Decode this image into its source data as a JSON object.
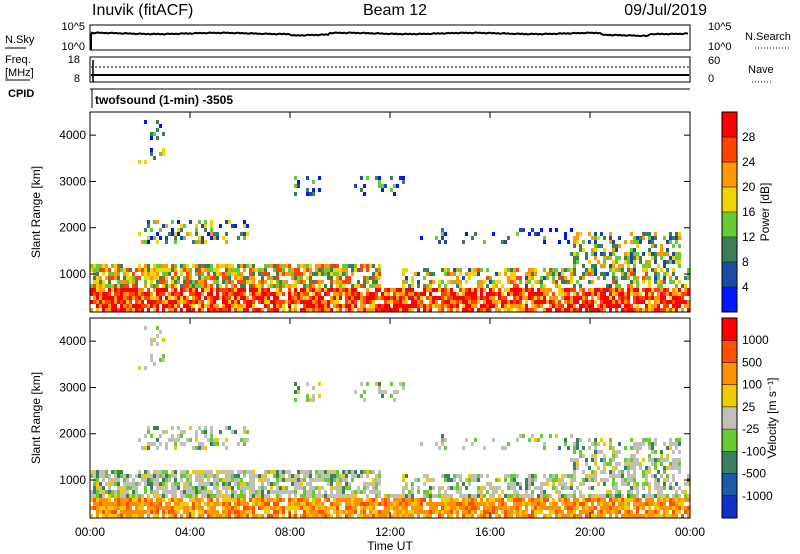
{
  "header": {
    "station": "Inuvik (fitACF)",
    "beam": "Beam 12",
    "date": "09/Jul/2019"
  },
  "top_panels": {
    "nsky_label": "N.Sky",
    "nsky_ticks": [
      "10^5",
      "10^0"
    ],
    "nsearch_label": "N.Search",
    "nsearch_ticks": [
      "10^5",
      "10^0"
    ],
    "freq_label_1": "Freq.",
    "freq_label_2": "[MHz]",
    "freq_ticks": [
      "18",
      "8"
    ],
    "nave_label": "Nave",
    "nave_ticks": [
      "60",
      "0"
    ],
    "cpid_label": "CPID",
    "cpid_value": "twofsound (1-min) -3505"
  },
  "chart_data": [
    {
      "type": "heatmap",
      "title": "",
      "ylabel": "Slant Range [km]",
      "yticks": [
        "1000",
        "2000",
        "3000",
        "4000"
      ],
      "ylim": [
        180,
        4500
      ],
      "colorbar": {
        "label": "Power [dB]",
        "ticks": [
          "4",
          "8",
          "12",
          "16",
          "20",
          "24",
          "28"
        ],
        "colors": [
          "#0018ff",
          "#1c4aa8",
          "#3a7f5a",
          "#66cc33",
          "#f2d400",
          "#ff9a00",
          "#ff4400",
          "#ff0000"
        ]
      }
    },
    {
      "type": "heatmap",
      "title": "",
      "ylabel": "Slant Range [km]",
      "yticks": [
        "1000",
        "2000",
        "3000",
        "4000"
      ],
      "ylim": [
        180,
        4500
      ],
      "xlabel": "Time UT",
      "xticks": [
        "00:00",
        "04:00",
        "08:00",
        "12:00",
        "16:00",
        "20:00",
        "00:00"
      ],
      "colorbar": {
        "label": "Velocity [m s⁻¹]",
        "ticks": [
          "1000",
          "500",
          "100",
          "25",
          "-25",
          "-100",
          "-500",
          "-1000"
        ],
        "colors": [
          "#1030c8",
          "#1e5aa8",
          "#3a8060",
          "#66cc33",
          "#c0c0b8",
          "#f2c800",
          "#ff9000",
          "#ff5000",
          "#ff0000"
        ]
      }
    }
  ]
}
